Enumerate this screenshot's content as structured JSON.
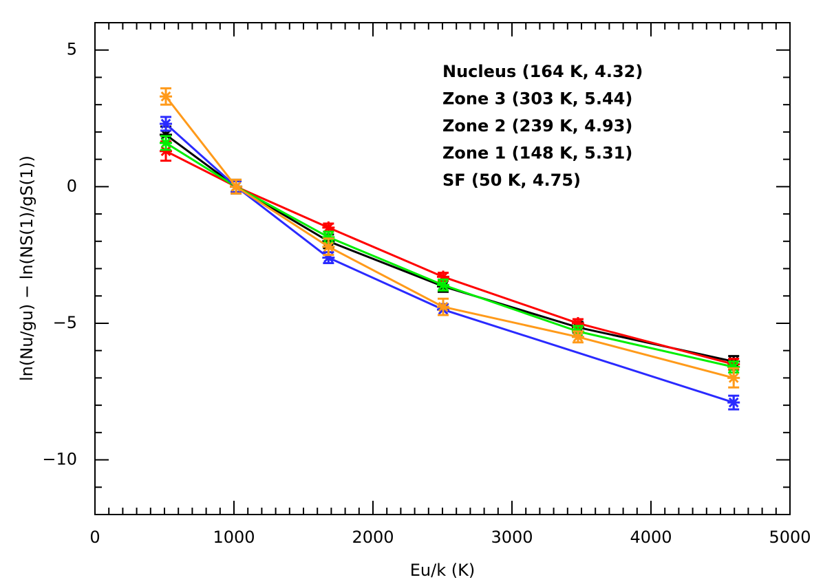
{
  "chart_data": {
    "type": "line",
    "xlabel": "Eu/k (K)",
    "ylabel": "ln(Nu/gu) − ln(NS(1)/gS(1))",
    "xlim": [
      0,
      5000
    ],
    "xticks": [
      0,
      1000,
      2000,
      3000,
      4000,
      5000
    ],
    "xminorticks": [
      100,
      200,
      300,
      400,
      500,
      600,
      700,
      800,
      900,
      1100,
      1200,
      1300,
      1400,
      1500,
      1600,
      1700,
      1800,
      1900,
      2100,
      2200,
      2300,
      2400,
      2500,
      2600,
      2700,
      2800,
      2900,
      3100,
      3200,
      3300,
      3400,
      3500,
      3600,
      3700,
      3800,
      3900,
      4100,
      4200,
      4300,
      4400,
      4500,
      4600,
      4700,
      4800,
      4900
    ],
    "ylim": [
      -12,
      6
    ],
    "yticks": [
      -10,
      -5,
      0,
      5
    ],
    "yminorticks": [
      -11,
      -9,
      -8,
      -7,
      -6,
      -4,
      -3,
      -2,
      -1,
      1,
      2,
      3,
      4
    ],
    "legend": "top-right",
    "series": [
      {
        "name": "Nucleus (164 K, 4.32)",
        "color": "#000000",
        "x": [
          510,
          1015,
          1680,
          2505,
          3475,
          4595
        ],
        "values": [
          1.9,
          0,
          -2.0,
          -3.65,
          -5.15,
          -6.4
        ],
        "errors": [
          0.3,
          0.25,
          0.25,
          0.2,
          0.2,
          0.2
        ]
      },
      {
        "name": "Zone 3 (303 K, 5.44)",
        "color": "#ff0000",
        "x": [
          510,
          1015,
          1680,
          2505,
          3475,
          4595
        ],
        "values": [
          1.3,
          0,
          -1.5,
          -3.3,
          -5.0,
          -6.5
        ],
        "errors": [
          0.35,
          0.2,
          0.15,
          0.15,
          0.15,
          0.2
        ]
      },
      {
        "name": "Zone 2 (239 K, 4.93)",
        "color": "#00ee00",
        "x": [
          510,
          1015,
          1680,
          2505,
          3475,
          4595
        ],
        "values": [
          1.6,
          0,
          -1.85,
          -3.6,
          -5.3,
          -6.6
        ],
        "errors": [
          0.25,
          0.2,
          0.2,
          0.2,
          0.2,
          0.2
        ]
      },
      {
        "name": "Zone 1 (148 K, 5.31)",
        "color": "#2a2aff",
        "x": [
          510,
          1015,
          1680,
          2505,
          4595
        ],
        "values": [
          2.3,
          0,
          -2.6,
          -4.5,
          -7.9
        ],
        "errors": [
          0.25,
          0.2,
          0.2,
          0.2,
          0.25
        ]
      },
      {
        "name": "SF (50 K, 4.75)",
        "color": "#ff9a1a",
        "x": [
          510,
          1015,
          1680,
          2505,
          3475,
          4595
        ],
        "values": [
          3.3,
          0,
          -2.2,
          -4.4,
          -5.5,
          -7.0
        ],
        "errors": [
          0.3,
          0.25,
          0.3,
          0.3,
          0.2,
          0.35
        ]
      }
    ]
  }
}
